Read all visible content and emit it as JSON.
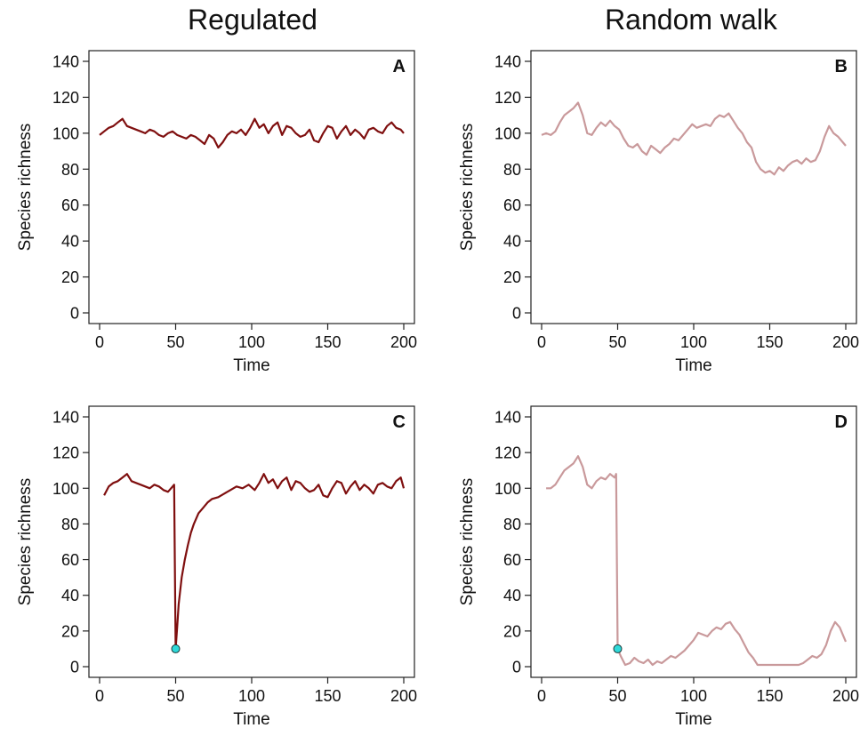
{
  "columns": [
    {
      "title": "Regulated"
    },
    {
      "title": "Random walk"
    }
  ],
  "colors": {
    "regulated": "#7f0f0f",
    "random_walk": "#c9999b",
    "marker_fill": "#2fd9d9",
    "marker_stroke": "#1a3a3a"
  },
  "chart_data": [
    {
      "id": "A",
      "panel_label": "A",
      "type": "line",
      "xlabel": "Time",
      "ylabel": "Species richness",
      "xlim": [
        0,
        200
      ],
      "ylim": [
        0,
        140
      ],
      "xticks": [
        0,
        50,
        100,
        150,
        200
      ],
      "yticks": [
        0,
        20,
        40,
        60,
        80,
        100,
        120,
        140
      ],
      "color": "#7f0f0f",
      "series": [
        {
          "x": [
            0,
            3,
            6,
            9,
            12,
            15,
            18,
            21,
            24,
            27,
            30,
            33,
            36,
            39,
            42,
            45,
            48,
            51,
            54,
            57,
            60,
            63,
            66,
            69,
            72,
            75,
            78,
            81,
            84,
            87,
            90,
            93,
            96,
            99,
            102,
            105,
            108,
            111,
            114,
            117,
            120,
            123,
            126,
            129,
            132,
            135,
            138,
            141,
            144,
            147,
            150,
            153,
            156,
            159,
            162,
            165,
            168,
            171,
            174,
            177,
            180,
            183,
            186,
            189,
            192,
            195,
            198,
            200
          ],
          "y": [
            99,
            101,
            103,
            104,
            106,
            108,
            104,
            103,
            102,
            101,
            100,
            102,
            101,
            99,
            98,
            100,
            101,
            99,
            98,
            97,
            99,
            98,
            96,
            94,
            99,
            97,
            92,
            95,
            99,
            101,
            100,
            102,
            99,
            103,
            108,
            103,
            105,
            100,
            104,
            106,
            99,
            104,
            103,
            100,
            98,
            99,
            102,
            96,
            95,
            100,
            104,
            103,
            97,
            101,
            104,
            99,
            102,
            100,
            97,
            102,
            103,
            101,
            100,
            104,
            106,
            103,
            102,
            100
          ]
        }
      ],
      "marker": null
    },
    {
      "id": "B",
      "panel_label": "B",
      "type": "line",
      "xlabel": "Time",
      "ylabel": "Species richness",
      "xlim": [
        0,
        200
      ],
      "ylim": [
        0,
        140
      ],
      "xticks": [
        0,
        50,
        100,
        150,
        200
      ],
      "yticks": [
        0,
        20,
        40,
        60,
        80,
        100,
        120,
        140
      ],
      "color": "#c9999b",
      "series": [
        {
          "x": [
            0,
            3,
            6,
            9,
            12,
            15,
            18,
            21,
            24,
            27,
            30,
            33,
            36,
            39,
            42,
            45,
            48,
            51,
            54,
            57,
            60,
            63,
            66,
            69,
            72,
            75,
            78,
            81,
            84,
            87,
            90,
            93,
            96,
            99,
            102,
            105,
            108,
            111,
            114,
            117,
            120,
            123,
            126,
            129,
            132,
            135,
            138,
            141,
            144,
            147,
            150,
            153,
            156,
            159,
            162,
            165,
            168,
            171,
            174,
            177,
            180,
            183,
            186,
            189,
            192,
            195,
            198,
            200
          ],
          "y": [
            99,
            100,
            99,
            101,
            106,
            110,
            112,
            114,
            117,
            110,
            100,
            99,
            103,
            106,
            104,
            107,
            104,
            102,
            97,
            93,
            92,
            94,
            90,
            88,
            93,
            91,
            89,
            92,
            94,
            97,
            96,
            99,
            102,
            105,
            103,
            104,
            105,
            104,
            108,
            110,
            109,
            111,
            107,
            103,
            100,
            95,
            92,
            84,
            80,
            78,
            79,
            77,
            81,
            79,
            82,
            84,
            85,
            83,
            86,
            84,
            85,
            90,
            98,
            104,
            100,
            98,
            95,
            93
          ]
        }
      ],
      "marker": null
    },
    {
      "id": "C",
      "panel_label": "C",
      "type": "line",
      "xlabel": "Time",
      "ylabel": "Species richness",
      "xlim": [
        0,
        200
      ],
      "ylim": [
        0,
        140
      ],
      "xticks": [
        0,
        50,
        100,
        150,
        200
      ],
      "yticks": [
        0,
        20,
        40,
        60,
        80,
        100,
        120,
        140
      ],
      "color": "#7f0f0f",
      "series": [
        {
          "x": [
            3,
            6,
            9,
            12,
            15,
            18,
            21,
            24,
            27,
            30,
            33,
            36,
            39,
            42,
            45,
            48,
            49,
            49.5,
            50,
            51,
            52,
            54,
            56,
            58,
            60,
            62,
            65,
            68,
            71,
            74,
            78,
            82,
            86,
            90,
            94,
            98,
            102,
            105,
            108,
            111,
            114,
            117,
            120,
            123,
            126,
            129,
            132,
            135,
            138,
            141,
            144,
            147,
            150,
            153,
            156,
            159,
            162,
            165,
            168,
            171,
            174,
            177,
            180,
            183,
            186,
            189,
            192,
            195,
            198,
            200
          ],
          "y": [
            96,
            101,
            103,
            104,
            106,
            108,
            104,
            103,
            102,
            101,
            100,
            102,
            101,
            99,
            98,
            101,
            102,
            58,
            10,
            22,
            35,
            50,
            60,
            68,
            75,
            80,
            86,
            89,
            92,
            94,
            95,
            97,
            99,
            101,
            100,
            102,
            99,
            103,
            108,
            103,
            105,
            100,
            104,
            106,
            99,
            104,
            103,
            100,
            98,
            99,
            102,
            96,
            95,
            100,
            104,
            103,
            97,
            101,
            104,
            99,
            102,
            100,
            97,
            102,
            103,
            101,
            100,
            104,
            106,
            100
          ]
        }
      ],
      "marker": {
        "x": 50,
        "y": 10
      }
    },
    {
      "id": "D",
      "panel_label": "D",
      "type": "line",
      "xlabel": "Time",
      "ylabel": "Species richness",
      "xlim": [
        0,
        200
      ],
      "ylim": [
        0,
        140
      ],
      "xticks": [
        0,
        50,
        100,
        150,
        200
      ],
      "yticks": [
        0,
        20,
        40,
        60,
        80,
        100,
        120,
        140
      ],
      "color": "#c9999b",
      "series": [
        {
          "x": [
            3,
            6,
            9,
            12,
            15,
            18,
            21,
            24,
            27,
            30,
            33,
            36,
            39,
            42,
            45,
            48,
            49,
            50,
            52,
            55,
            58,
            61,
            64,
            67,
            70,
            73,
            76,
            79,
            82,
            85,
            88,
            91,
            94,
            97,
            100,
            103,
            106,
            109,
            112,
            115,
            118,
            121,
            124,
            127,
            130,
            133,
            136,
            139,
            142,
            145,
            148,
            151,
            154,
            157,
            160,
            163,
            166,
            169,
            172,
            175,
            178,
            181,
            184,
            187,
            190,
            193,
            196,
            200
          ],
          "y": [
            100,
            100,
            102,
            106,
            110,
            112,
            114,
            118,
            112,
            102,
            100,
            104,
            106,
            105,
            108,
            106,
            108,
            10,
            6,
            1,
            2,
            5,
            3,
            2,
            4,
            1,
            3,
            2,
            4,
            6,
            5,
            7,
            9,
            12,
            15,
            19,
            18,
            17,
            20,
            22,
            21,
            24,
            25,
            21,
            18,
            13,
            8,
            5,
            1,
            1,
            1,
            1,
            1,
            1,
            1,
            1,
            1,
            1,
            2,
            4,
            6,
            5,
            7,
            12,
            20,
            25,
            22,
            14
          ]
        }
      ],
      "marker": {
        "x": 50,
        "y": 10
      }
    }
  ]
}
